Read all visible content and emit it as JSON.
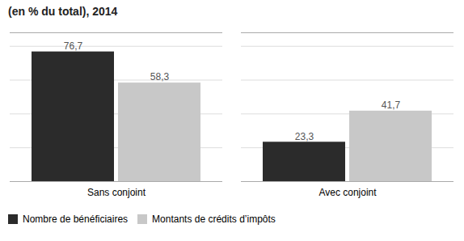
{
  "chart_data": {
    "type": "bar",
    "title": "(en % du total), 2014",
    "categories": [
      "Sans conjoint",
      "Avec conjoint"
    ],
    "series": [
      {
        "name": "Nombre de bénéficiaires",
        "color": "#2b2b2b",
        "values": [
          76.7,
          23.3
        ],
        "value_labels": [
          "76,7",
          "23,3"
        ]
      },
      {
        "name": "Montants de crédits d’impôts",
        "color": "#c8c8c8",
        "values": [
          58.3,
          41.7
        ],
        "value_labels": [
          "58,3",
          "41,7"
        ]
      }
    ],
    "ylim": [
      0,
      88
    ],
    "yticks": [
      0,
      20,
      40,
      60,
      80
    ],
    "grid": true,
    "tick_labels": "x",
    "data_labels": true,
    "legend": "bottom"
  }
}
